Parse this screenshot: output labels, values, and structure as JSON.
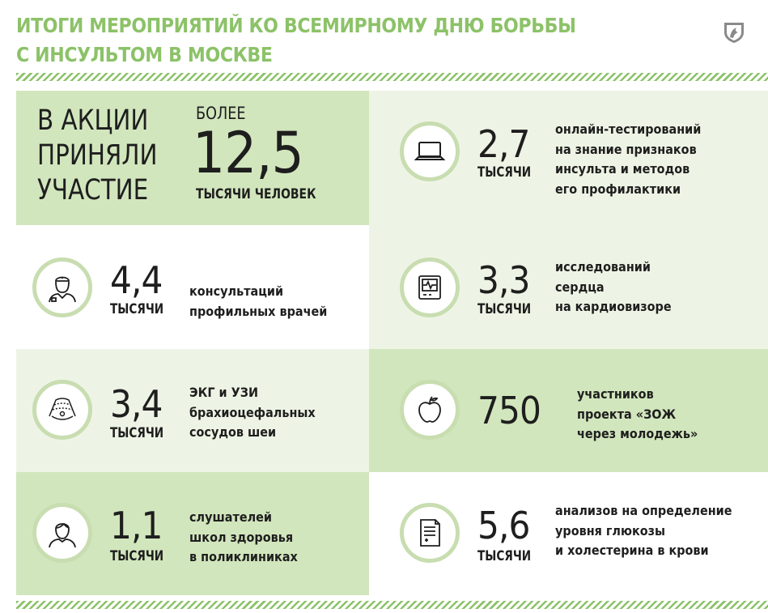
{
  "header": {
    "title_lines": [
      "ИТОГИ МЕРОПРИЯТИЙ КО ВСЕМИРНОМУ ДНЮ БОРЬБЫ",
      "С ИНСУЛЬТОМ В МОСКВЕ"
    ]
  },
  "colors": {
    "accent": "#8cc268",
    "cell_light": "#eef4e5",
    "cell_dark": "#d2e6bd",
    "ring": "#c8ddb0"
  },
  "hero": {
    "label_lines": [
      "В АКЦИИ",
      "ПРИНЯЛИ",
      "УЧАСТИЕ"
    ],
    "prefix": "БОЛЕЕ",
    "value": "12,5",
    "unit": "ТЫСЯЧИ ЧЕЛОВЕК"
  },
  "stats": [
    {
      "id": "online-tests",
      "icon": "laptop-icon",
      "value": "2,7",
      "unit": "ТЫСЯЧИ",
      "desc_lines": [
        "онлайн-тестирований",
        "на знание признаков",
        "инсульта и методов",
        "его профилактики"
      ]
    },
    {
      "id": "doctor-consults",
      "icon": "doctor-icon",
      "value": "4,4",
      "unit": "ТЫСЯЧИ",
      "desc_lines": [
        "консультаций",
        "профильных врачей"
      ]
    },
    {
      "id": "heart-studies",
      "icon": "cardiovisor-icon",
      "value": "3,3",
      "unit": "ТЫСЯЧИ",
      "desc_lines": [
        "исследований",
        "сердца",
        "на кардиовизоре"
      ]
    },
    {
      "id": "ecg-ultrasound",
      "icon": "ultrasound-icon",
      "value": "3,4",
      "unit": "ТЫСЯЧИ",
      "desc_lines": [
        "ЭКГ и УЗИ",
        "брахиоцефальных",
        "сосудов шеи"
      ]
    },
    {
      "id": "zozh-participants",
      "icon": "apple-icon",
      "value": "750",
      "unit": "",
      "desc_lines": [
        "участников",
        "проекта «ЗОЖ",
        "через молодежь»"
      ]
    },
    {
      "id": "health-school",
      "icon": "person-icon",
      "value": "1,1",
      "unit": "ТЫСЯЧИ",
      "desc_lines": [
        "слушателей",
        "школ здоровья",
        "в поликлиниках"
      ]
    },
    {
      "id": "glucose-tests",
      "icon": "lab-report-icon",
      "value": "5,6",
      "unit": "ТЫСЯЧИ",
      "desc_lines": [
        "анализов на определение",
        "уровня глюкозы",
        "и холестерина в крови"
      ]
    }
  ]
}
